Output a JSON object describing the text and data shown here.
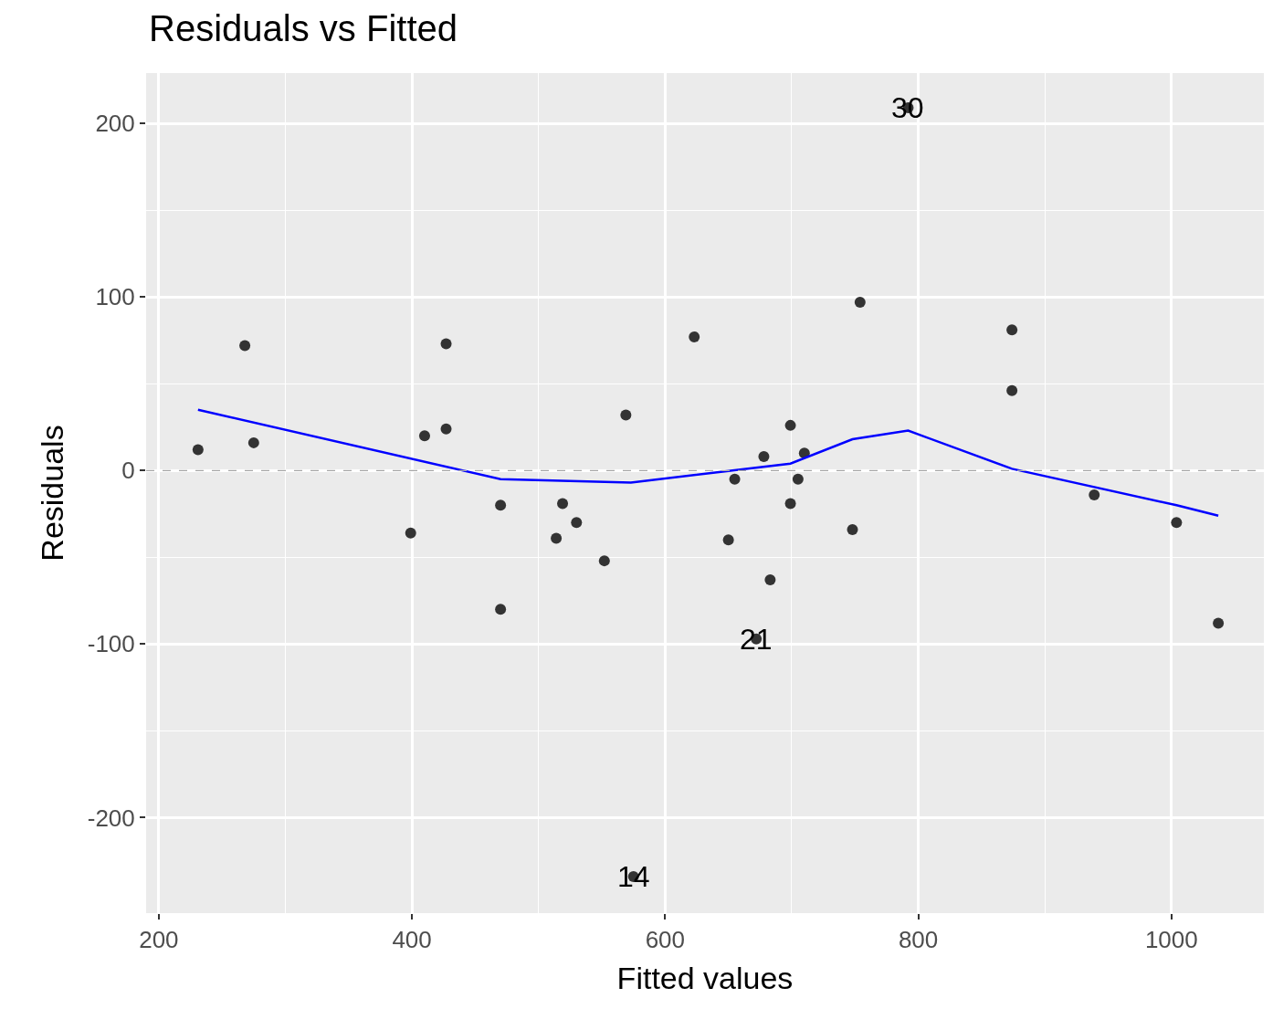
{
  "chart_data": {
    "type": "scatter",
    "title": "Residuals vs Fitted",
    "xlabel": "Fitted values",
    "ylabel": "Residuals",
    "xlim": [
      190,
      1073
    ],
    "ylim": [
      -255,
      229
    ],
    "xticks": [
      200,
      400,
      600,
      800,
      1000
    ],
    "yticks": [
      -200,
      -100,
      0,
      100,
      200
    ],
    "grid": true,
    "marker": "circle",
    "series": [
      {
        "color": "#333333",
        "x": [
          231,
          268,
          275,
          399,
          410,
          427,
          427,
          470,
          470,
          514,
          519,
          530,
          552,
          569,
          575,
          623,
          650,
          655,
          672,
          678,
          683,
          699,
          699,
          705,
          710,
          748,
          754,
          792,
          874,
          874,
          939,
          1004,
          1037
        ],
        "values": [
          12,
          72,
          16,
          -36,
          20,
          73,
          24,
          -20,
          -80,
          -39,
          -19,
          -30,
          -52,
          32,
          -234,
          77,
          -40,
          -5,
          -97,
          8,
          -63,
          26,
          -19,
          -5,
          10,
          -34,
          97,
          209,
          81,
          46,
          -14,
          -30,
          -88
        ]
      },
      {
        "type": "line",
        "color": "#0000ff",
        "marker": "none",
        "x": [
          231,
          470,
          573,
          699,
          748,
          792,
          874,
          1004,
          1037
        ],
        "values": [
          35,
          -5,
          -7,
          4,
          18,
          23,
          1,
          -20,
          -26
        ]
      }
    ],
    "ref_lines": [
      {
        "axis": "y",
        "value": 0,
        "color": "#a6a6a6",
        "line_style": "dashed"
      }
    ],
    "annotations": [
      {
        "text": "30",
        "x": 792,
        "y": 209
      },
      {
        "text": "21",
        "x": 672,
        "y": -97
      },
      {
        "text": "14",
        "x": 575,
        "y": -234
      }
    ]
  }
}
